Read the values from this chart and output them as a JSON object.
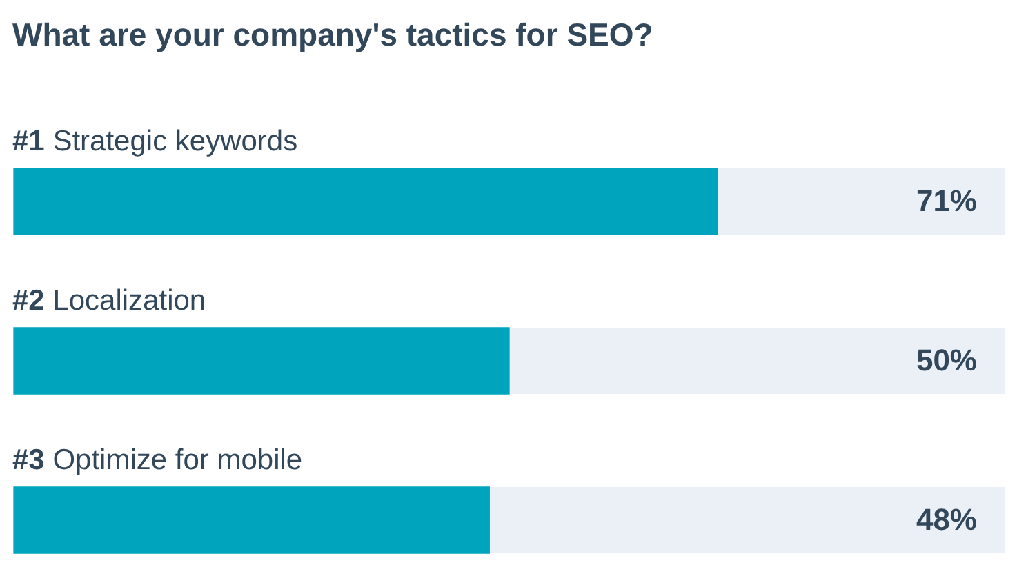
{
  "chart_data": {
    "type": "bar",
    "orientation": "horizontal",
    "title": "What are your company's tactics for SEO?",
    "categories": [
      "#1 Strategic keywords",
      "#2 Localization",
      "#3 Optimize for mobile"
    ],
    "values": [
      71,
      50,
      48
    ],
    "value_labels": [
      "71%",
      "50%",
      "48%"
    ],
    "color": "#00a4bd",
    "xlim": [
      0,
      100
    ],
    "tick_labels": false,
    "legend": false,
    "grid": false
  }
}
